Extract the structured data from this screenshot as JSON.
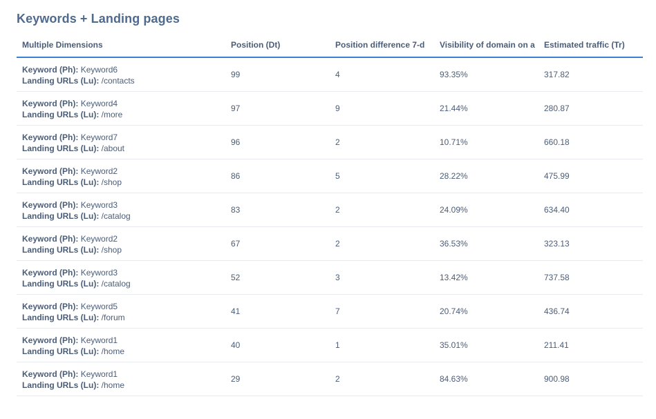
{
  "widget": {
    "title": "Keywords + Landing pages"
  },
  "table": {
    "headers": [
      "Multiple Dimensions",
      "Position (Dt)",
      "Position difference 7-d",
      "Visibility of domain on a",
      "Estimated traffic (Tr)"
    ],
    "dimension_labels": {
      "keyword": "Keyword (Ph):",
      "landing": "Landing URLs (Lu):"
    },
    "rows": [
      {
        "keyword": "Keyword6",
        "url": "/contacts",
        "position": "99",
        "position_diff": "4",
        "visibility": "93.35%",
        "traffic": "317.82"
      },
      {
        "keyword": "Keyword4",
        "url": "/more",
        "position": "97",
        "position_diff": "9",
        "visibility": "21.44%",
        "traffic": "280.87"
      },
      {
        "keyword": "Keyword7",
        "url": "/about",
        "position": "96",
        "position_diff": "2",
        "visibility": "10.71%",
        "traffic": "660.18"
      },
      {
        "keyword": "Keyword2",
        "url": "/shop",
        "position": "86",
        "position_diff": "5",
        "visibility": "28.22%",
        "traffic": "475.99"
      },
      {
        "keyword": "Keyword3",
        "url": "/catalog",
        "position": "83",
        "position_diff": "2",
        "visibility": "24.09%",
        "traffic": "634.40"
      },
      {
        "keyword": "Keyword2",
        "url": "/shop",
        "position": "67",
        "position_diff": "2",
        "visibility": "36.53%",
        "traffic": "323.13"
      },
      {
        "keyword": "Keyword3",
        "url": "/catalog",
        "position": "52",
        "position_diff": "3",
        "visibility": "13.42%",
        "traffic": "737.58"
      },
      {
        "keyword": "Keyword5",
        "url": "/forum",
        "position": "41",
        "position_diff": "7",
        "visibility": "20.74%",
        "traffic": "436.74"
      },
      {
        "keyword": "Keyword1",
        "url": "/home",
        "position": "40",
        "position_diff": "1",
        "visibility": "35.01%",
        "traffic": "211.41"
      },
      {
        "keyword": "Keyword1",
        "url": "/home",
        "position": "29",
        "position_diff": "2",
        "visibility": "84.63%",
        "traffic": "900.98"
      }
    ]
  },
  "colors": {
    "title": "#4f6a8f",
    "text": "#4a5d78",
    "header_rule": "#3a7fd5",
    "row_rule": "#e6e9ee"
  }
}
